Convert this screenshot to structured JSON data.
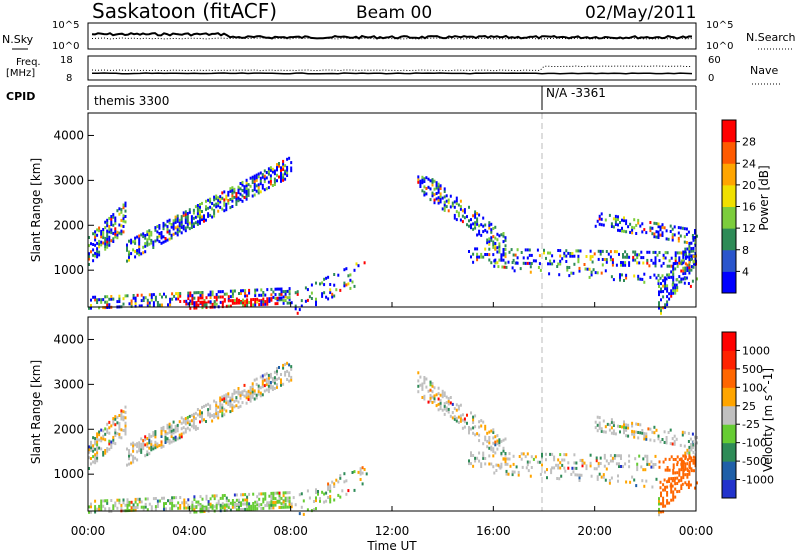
{
  "header": {
    "title": "Saskatoon (fitACF)",
    "beam": "Beam 00",
    "date": "02/May/2011"
  },
  "noise_panel": {
    "left_label": "N.Sky",
    "right_label": "N.Search",
    "left_ticks": [
      "10^5",
      "10^0"
    ],
    "right_ticks": [
      "10^5",
      "10^0"
    ]
  },
  "freq_panel": {
    "left_label_top": "Freq.",
    "left_label_bottom": "[MHz]",
    "right_label": "Nave",
    "left_ticks": [
      "18",
      "8"
    ],
    "right_ticks": [
      "60",
      "0"
    ]
  },
  "cpid_panel": {
    "label": "CPID",
    "segments": [
      {
        "start_hour": 0,
        "text": "themis 3300"
      },
      {
        "start_hour": 18,
        "text": "N/A -3361"
      }
    ]
  },
  "chart_data": [
    {
      "type": "heatmap",
      "name": "power",
      "ylabel": "Slant Range [km]",
      "ylim": [
        180,
        4500
      ],
      "yticks": [
        "4000",
        "3000",
        "2000",
        "1000"
      ],
      "xlim": [
        0,
        24
      ],
      "colorbar": {
        "label": "Power [dB]",
        "ticks": [
          "28",
          "24",
          "20",
          "16",
          "12",
          "8",
          "4"
        ],
        "colors": [
          "#0000ff",
          "#2a55cc",
          "#2e8b57",
          "#7ccd3c",
          "#f0e000",
          "#ffa500",
          "#ff5a00",
          "#ff0000"
        ]
      }
    },
    {
      "type": "heatmap",
      "name": "velocity",
      "ylabel": "Slant Range [km]",
      "ylim": [
        180,
        4500
      ],
      "yticks": [
        "4000",
        "3000",
        "2000",
        "1000"
      ],
      "xlim": [
        0,
        24
      ],
      "colorbar": {
        "label": "Velocity [m s^-1]",
        "ticks": [
          "1000",
          "500",
          "100",
          "25",
          "-25",
          "-100",
          "-500",
          "-1000"
        ],
        "colors": [
          "#2233cc",
          "#1f5fa8",
          "#2e8b57",
          "#66cc33",
          "#c0c0c0",
          "#ffa500",
          "#ff6600",
          "#ff2200",
          "#ff0000"
        ]
      }
    }
  ],
  "x_axis": {
    "ticks": [
      "00:00",
      "04:00",
      "08:00",
      "12:00",
      "16:00",
      "20:00",
      "00:00"
    ],
    "label": "Time UT"
  }
}
